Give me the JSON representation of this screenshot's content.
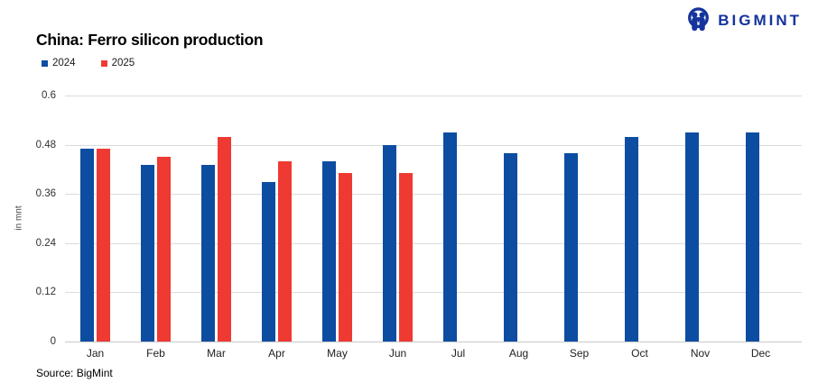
{
  "logo": {
    "text": "BIGMINT",
    "color": "#15339c"
  },
  "chart": {
    "title": "China: Ferro silicon production",
    "source": "Source: BigMint"
  },
  "chart_data": {
    "type": "bar",
    "title": "China: Ferro silicon production",
    "ylabel": "in mnt",
    "xlabel": "",
    "ylim": [
      0,
      0.6
    ],
    "grid": true,
    "legend_position": "top-left",
    "categories": [
      "Jan",
      "Feb",
      "Mar",
      "Apr",
      "May",
      "Jun",
      "Jul",
      "Aug",
      "Sep",
      "Oct",
      "Nov",
      "Dec"
    ],
    "series": [
      {
        "name": "2024",
        "color": "#0c4da2",
        "values": [
          0.47,
          0.43,
          0.43,
          0.39,
          0.44,
          0.48,
          0.51,
          0.46,
          0.46,
          0.5,
          0.51,
          0.51
        ]
      },
      {
        "name": "2025",
        "color": "#ee3a33",
        "values": [
          0.47,
          0.45,
          0.5,
          0.44,
          0.41,
          0.41,
          null,
          null,
          null,
          null,
          null,
          null
        ]
      }
    ],
    "yticks": [
      {
        "label": "0.6",
        "value": 0.6
      },
      {
        "label": "0.48",
        "value": 0.48
      },
      {
        "label": "0.36",
        "value": 0.36
      },
      {
        "label": "0.24",
        "value": 0.24
      },
      {
        "label": "0.12",
        "value": 0.12
      },
      {
        "label": "0",
        "value": 0
      }
    ]
  }
}
